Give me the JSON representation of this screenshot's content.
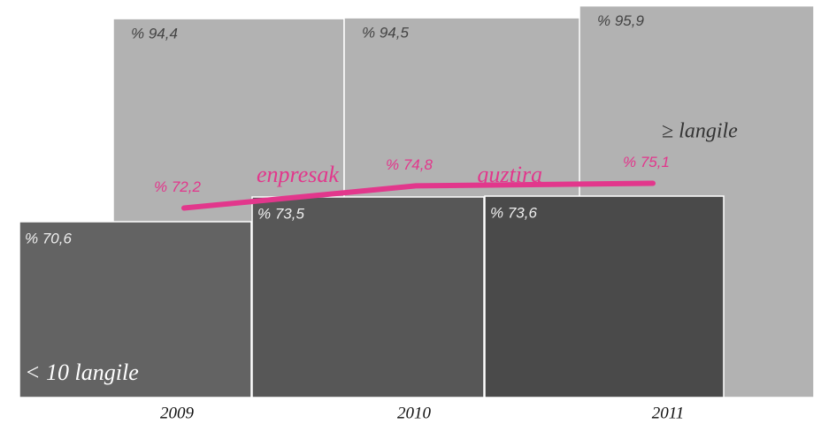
{
  "chart_data": {
    "type": "bar",
    "categories": [
      "2009",
      "2010",
      "2011"
    ],
    "ylim": [
      50,
      100
    ],
    "series": [
      {
        "name": "≥ langile",
        "color": "#b2b2b2",
        "values": [
          94.4,
          94.5,
          95.9
        ],
        "value_labels": [
          "% 94,4",
          "% 94,5",
          "% 95,9"
        ]
      },
      {
        "name": "< 10 langile",
        "color": "#575757",
        "values": [
          70.6,
          73.5,
          73.6
        ],
        "value_labels": [
          "% 70,6",
          "% 73,5",
          "% 73,6"
        ]
      },
      {
        "name": "enpresak guztira",
        "type": "line",
        "color": "#e2378c",
        "values": [
          72.2,
          74.8,
          75.1
        ],
        "value_labels": [
          "% 72,2",
          "% 74,8",
          "% 75,1"
        ]
      }
    ]
  }
}
